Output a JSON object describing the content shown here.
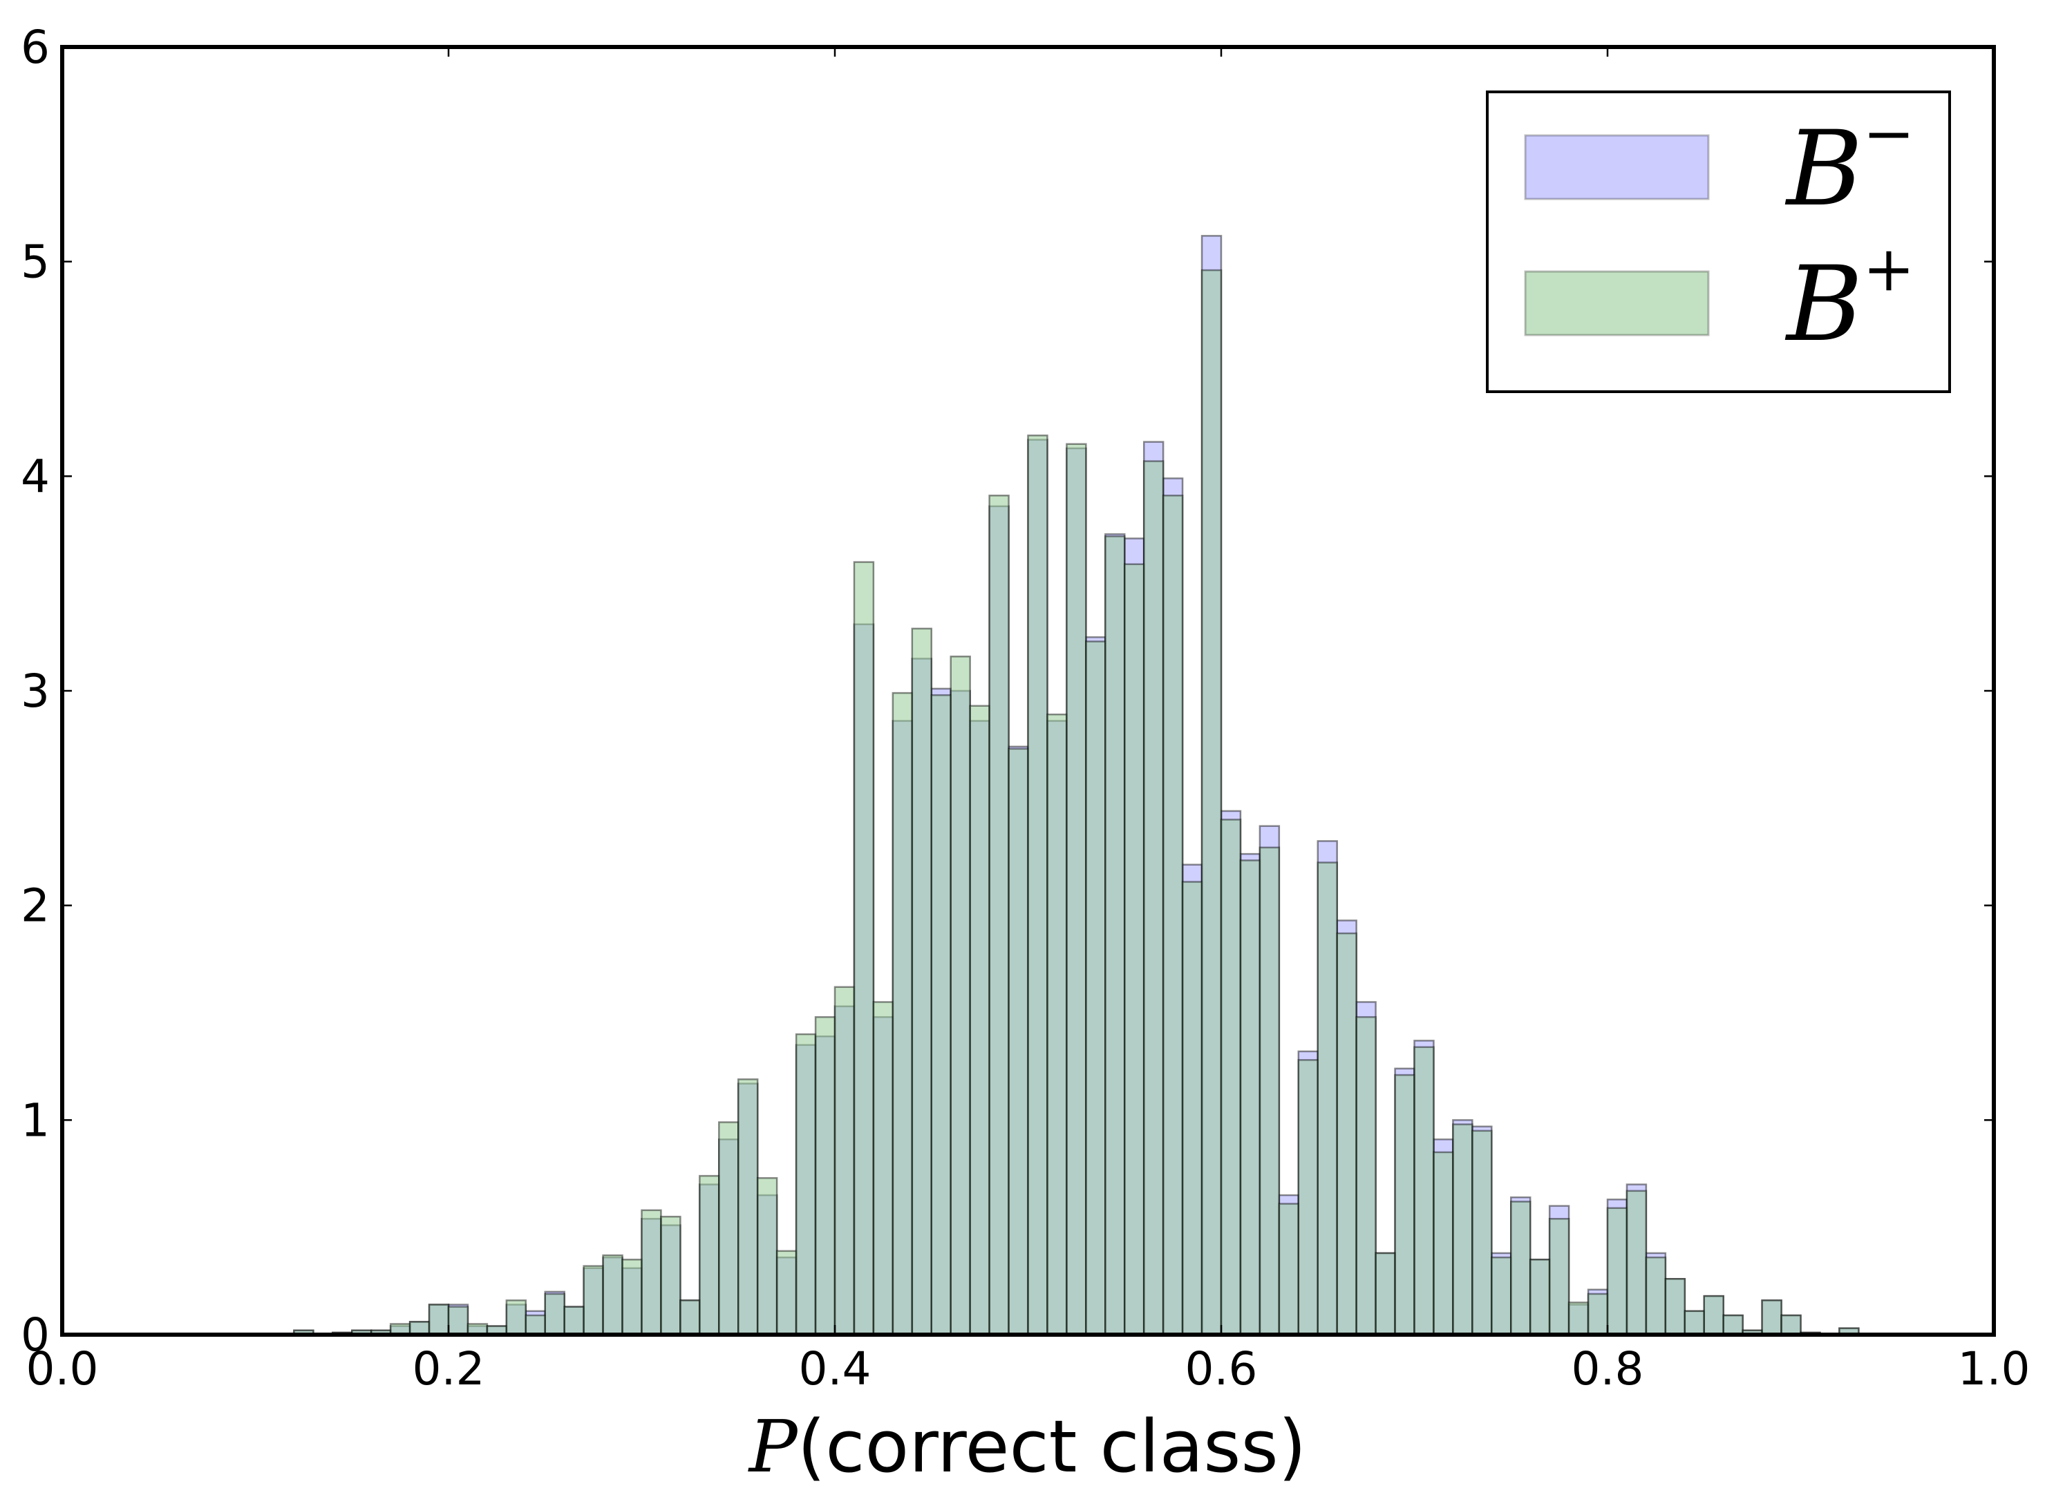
{
  "chart_data": {
    "type": "bar",
    "xlabel": "P(correct class)",
    "xlabel_var": "P",
    "xlabel_text": "(correct class)",
    "ylabel": "",
    "xlim": [
      0.0,
      1.0
    ],
    "ylim": [
      0,
      6
    ],
    "xticks": [
      "0.0",
      "0.2",
      "0.4",
      "0.6",
      "0.8",
      "1.0"
    ],
    "yticks": [
      "0",
      "1",
      "2",
      "3",
      "4",
      "5",
      "6"
    ],
    "legend_position": "top-right",
    "grid": false,
    "bin_width": 0.01,
    "series": [
      {
        "name": "B−",
        "legend_base": "B",
        "legend_sup": "−",
        "color": "#aaaaff",
        "bins": [
          [
            0.12,
            0.02
          ],
          [
            0.14,
            0.01
          ],
          [
            0.15,
            0.02
          ],
          [
            0.16,
            0.02
          ],
          [
            0.17,
            0.04
          ],
          [
            0.18,
            0.06
          ],
          [
            0.19,
            0.14
          ],
          [
            0.2,
            0.14
          ],
          [
            0.21,
            0.04
          ],
          [
            0.22,
            0.04
          ],
          [
            0.23,
            0.14
          ],
          [
            0.24,
            0.11
          ],
          [
            0.25,
            0.2
          ],
          [
            0.26,
            0.13
          ],
          [
            0.27,
            0.31
          ],
          [
            0.28,
            0.36
          ],
          [
            0.29,
            0.31
          ],
          [
            0.3,
            0.54
          ],
          [
            0.31,
            0.51
          ],
          [
            0.32,
            0.16
          ],
          [
            0.33,
            0.7
          ],
          [
            0.34,
            0.91
          ],
          [
            0.35,
            1.17
          ],
          [
            0.36,
            0.65
          ],
          [
            0.37,
            0.36
          ],
          [
            0.38,
            1.35
          ],
          [
            0.39,
            1.39
          ],
          [
            0.4,
            1.53
          ],
          [
            0.41,
            3.31
          ],
          [
            0.42,
            1.48
          ],
          [
            0.43,
            2.86
          ],
          [
            0.44,
            3.15
          ],
          [
            0.45,
            3.01
          ],
          [
            0.46,
            3.0
          ],
          [
            0.47,
            2.86
          ],
          [
            0.48,
            3.86
          ],
          [
            0.49,
            2.74
          ],
          [
            0.5,
            4.17
          ],
          [
            0.51,
            2.86
          ],
          [
            0.52,
            4.13
          ],
          [
            0.53,
            3.25
          ],
          [
            0.54,
            3.73
          ],
          [
            0.55,
            3.71
          ],
          [
            0.56,
            4.16
          ],
          [
            0.57,
            3.99
          ],
          [
            0.58,
            2.19
          ],
          [
            0.59,
            5.12
          ],
          [
            0.6,
            2.44
          ],
          [
            0.61,
            2.24
          ],
          [
            0.62,
            2.37
          ],
          [
            0.63,
            0.65
          ],
          [
            0.64,
            1.32
          ],
          [
            0.65,
            2.3
          ],
          [
            0.66,
            1.93
          ],
          [
            0.67,
            1.55
          ],
          [
            0.68,
            0.38
          ],
          [
            0.69,
            1.24
          ],
          [
            0.7,
            1.37
          ],
          [
            0.71,
            0.91
          ],
          [
            0.72,
            1.0
          ],
          [
            0.73,
            0.97
          ],
          [
            0.74,
            0.38
          ],
          [
            0.75,
            0.64
          ],
          [
            0.76,
            0.35
          ],
          [
            0.77,
            0.6
          ],
          [
            0.78,
            0.14
          ],
          [
            0.79,
            0.21
          ],
          [
            0.8,
            0.63
          ],
          [
            0.81,
            0.7
          ],
          [
            0.82,
            0.38
          ],
          [
            0.83,
            0.26
          ],
          [
            0.84,
            0.11
          ],
          [
            0.85,
            0.18
          ],
          [
            0.86,
            0.09
          ],
          [
            0.87,
            0.02
          ],
          [
            0.88,
            0.16
          ],
          [
            0.89,
            0.09
          ],
          [
            0.9,
            0.01
          ],
          [
            0.92,
            0.03
          ]
        ]
      },
      {
        "name": "B+",
        "legend_base": "B",
        "legend_sup": "+",
        "color": "#99cc99",
        "bins": [
          [
            0.12,
            0.02
          ],
          [
            0.14,
            0.01
          ],
          [
            0.15,
            0.02
          ],
          [
            0.16,
            0.02
          ],
          [
            0.17,
            0.05
          ],
          [
            0.18,
            0.06
          ],
          [
            0.19,
            0.14
          ],
          [
            0.2,
            0.13
          ],
          [
            0.21,
            0.05
          ],
          [
            0.22,
            0.04
          ],
          [
            0.23,
            0.16
          ],
          [
            0.24,
            0.09
          ],
          [
            0.25,
            0.19
          ],
          [
            0.26,
            0.13
          ],
          [
            0.27,
            0.32
          ],
          [
            0.28,
            0.37
          ],
          [
            0.29,
            0.35
          ],
          [
            0.3,
            0.58
          ],
          [
            0.31,
            0.55
          ],
          [
            0.32,
            0.16
          ],
          [
            0.33,
            0.74
          ],
          [
            0.34,
            0.99
          ],
          [
            0.35,
            1.19
          ],
          [
            0.36,
            0.73
          ],
          [
            0.37,
            0.39
          ],
          [
            0.38,
            1.4
          ],
          [
            0.39,
            1.48
          ],
          [
            0.4,
            1.62
          ],
          [
            0.41,
            3.6
          ],
          [
            0.42,
            1.55
          ],
          [
            0.43,
            2.99
          ],
          [
            0.44,
            3.29
          ],
          [
            0.45,
            2.98
          ],
          [
            0.46,
            3.16
          ],
          [
            0.47,
            2.93
          ],
          [
            0.48,
            3.91
          ],
          [
            0.49,
            2.73
          ],
          [
            0.5,
            4.19
          ],
          [
            0.51,
            2.89
          ],
          [
            0.52,
            4.15
          ],
          [
            0.53,
            3.23
          ],
          [
            0.54,
            3.72
          ],
          [
            0.55,
            3.59
          ],
          [
            0.56,
            4.07
          ],
          [
            0.57,
            3.91
          ],
          [
            0.58,
            2.11
          ],
          [
            0.59,
            4.96
          ],
          [
            0.6,
            2.4
          ],
          [
            0.61,
            2.21
          ],
          [
            0.62,
            2.27
          ],
          [
            0.63,
            0.61
          ],
          [
            0.64,
            1.28
          ],
          [
            0.65,
            2.2
          ],
          [
            0.66,
            1.87
          ],
          [
            0.67,
            1.48
          ],
          [
            0.68,
            0.38
          ],
          [
            0.69,
            1.21
          ],
          [
            0.7,
            1.34
          ],
          [
            0.71,
            0.85
          ],
          [
            0.72,
            0.98
          ],
          [
            0.73,
            0.95
          ],
          [
            0.74,
            0.36
          ],
          [
            0.75,
            0.62
          ],
          [
            0.76,
            0.35
          ],
          [
            0.77,
            0.54
          ],
          [
            0.78,
            0.15
          ],
          [
            0.79,
            0.19
          ],
          [
            0.8,
            0.59
          ],
          [
            0.81,
            0.67
          ],
          [
            0.82,
            0.36
          ],
          [
            0.83,
            0.26
          ],
          [
            0.84,
            0.11
          ],
          [
            0.85,
            0.18
          ],
          [
            0.86,
            0.09
          ],
          [
            0.87,
            0.02
          ],
          [
            0.88,
            0.16
          ],
          [
            0.89,
            0.09
          ],
          [
            0.9,
            0.01
          ],
          [
            0.92,
            0.03
          ]
        ]
      }
    ]
  }
}
